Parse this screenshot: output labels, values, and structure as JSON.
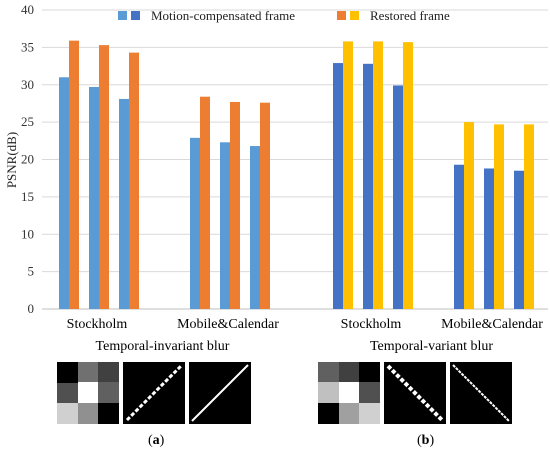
{
  "chart_data": {
    "type": "bar",
    "ylabel": "PSNR(dB)",
    "ylim": [
      0,
      40
    ],
    "yticks": [
      "0",
      "5",
      "10",
      "15",
      "20",
      "25",
      "30",
      "35",
      "40"
    ],
    "legend": {
      "placement": "top",
      "entries": [
        {
          "label": "Motion-compensated frame",
          "colors": [
            "#5b9bd5",
            "#4472c4"
          ]
        },
        {
          "label": "Restored frame",
          "colors": [
            "#ed7d31",
            "#ffc000"
          ]
        }
      ]
    },
    "groups": [
      {
        "title": "Temporal-invariant blur",
        "colors": {
          "motion": "#5b9bd5",
          "restored": "#ed7d31"
        },
        "categories": [
          {
            "label": "Stockholm",
            "motion": [
              31.0,
              29.7,
              28.1
            ],
            "restored": [
              35.9,
              35.3,
              34.3
            ]
          },
          {
            "label": "Mobile&Calendar",
            "motion": [
              22.9,
              22.3,
              21.8
            ],
            "restored": [
              28.4,
              27.7,
              27.6
            ]
          }
        ]
      },
      {
        "title": "Temporal-variant blur",
        "colors": {
          "motion": "#4472c4",
          "restored": "#ffc000"
        },
        "categories": [
          {
            "label": "Stockholm",
            "motion": [
              32.9,
              32.8,
              29.9
            ],
            "restored": [
              35.8,
              35.8,
              35.7
            ]
          },
          {
            "label": "Mobile&Calendar",
            "motion": [
              19.3,
              18.8,
              18.5
            ],
            "restored": [
              25.0,
              24.7,
              24.7
            ]
          }
        ]
      }
    ]
  },
  "panels": [
    {
      "label": "a",
      "kernels": [
        "kernel-3x3-blocky",
        "kernel-diagonal-thin",
        "kernel-diagonal-thinner"
      ]
    },
    {
      "label": "b",
      "kernels": [
        "kernel-3x3-blocky-rev",
        "kernel-antidiagonal-thin",
        "kernel-antidiagonal-thinner"
      ]
    }
  ]
}
